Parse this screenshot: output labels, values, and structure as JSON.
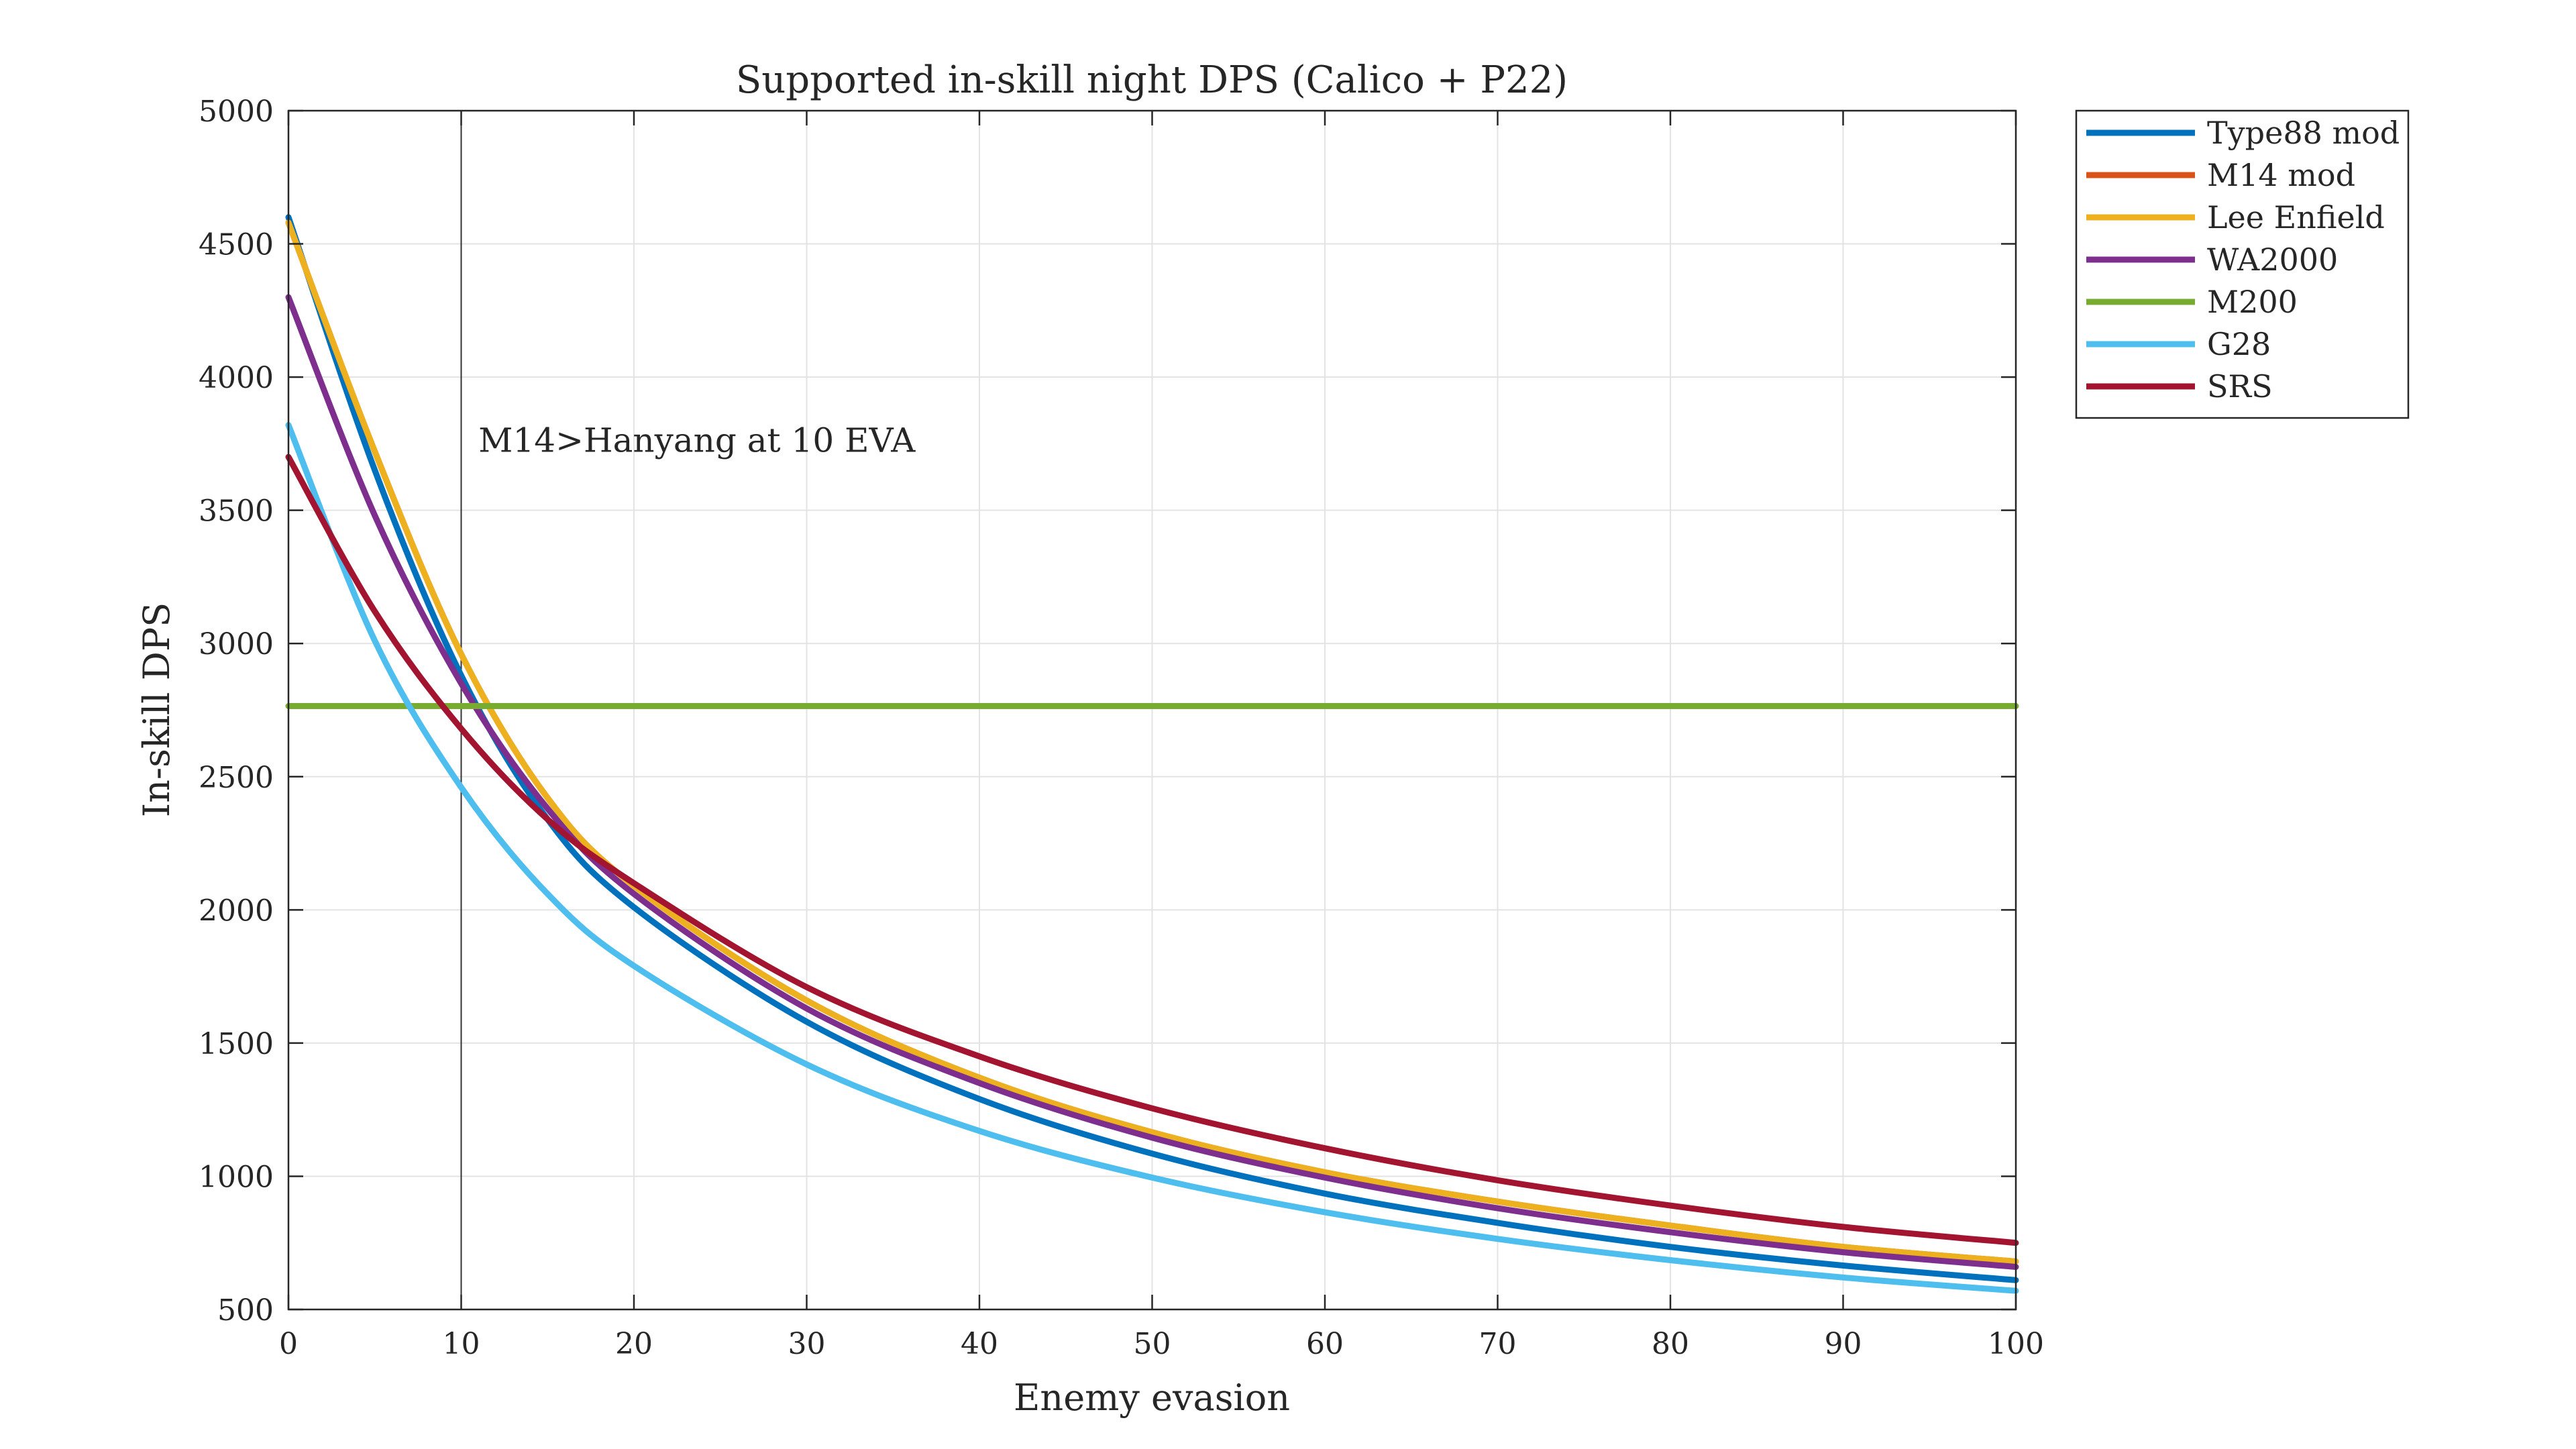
{
  "chart_data": {
    "type": "line",
    "title": "Supported in-skill night DPS (Calico + P22)",
    "xlabel": "Enemy evasion",
    "ylabel": "In-skill DPS",
    "xlim": [
      0,
      100
    ],
    "ylim": [
      500,
      5000
    ],
    "xticks": [
      0,
      10,
      20,
      30,
      40,
      50,
      60,
      70,
      80,
      90,
      100
    ],
    "yticks": [
      500,
      1000,
      1500,
      2000,
      2500,
      3000,
      3500,
      4000,
      4500,
      5000
    ],
    "grid": true,
    "legend_position": "outside top-right",
    "x": [
      0,
      5,
      10,
      15,
      20,
      30,
      40,
      50,
      60,
      70,
      80,
      90,
      100
    ],
    "series": [
      {
        "name": "Type88 mod",
        "color": "#0072BD",
        "values": [
          4600,
          3650,
          2880,
          2340,
          2010,
          1580,
          1290,
          1085,
          935,
          825,
          735,
          665,
          610
        ]
      },
      {
        "name": "M14 mod",
        "color": "#D95319",
        "values": [
          4580,
          3720,
          2960,
          2420,
          2090,
          1660,
          1370,
          1165,
          1015,
          905,
          815,
          735,
          680
        ]
      },
      {
        "name": "Lee Enfield",
        "color": "#EDB120",
        "values": [
          4580,
          3720,
          2960,
          2420,
          2090,
          1660,
          1370,
          1165,
          1015,
          905,
          815,
          735,
          680
        ]
      },
      {
        "name": "WA2000",
        "color": "#7E2F8E",
        "values": [
          4300,
          3480,
          2850,
          2380,
          2060,
          1630,
          1350,
          1145,
          995,
          880,
          790,
          715,
          660
        ]
      },
      {
        "name": "M200",
        "color": "#77AC30",
        "values": [
          2765,
          2765,
          2765,
          2765,
          2765,
          2765,
          2765,
          2765,
          2765,
          2765,
          2765,
          2765,
          2765
        ]
      },
      {
        "name": "G28",
        "color": "#4DBEEE",
        "values": [
          3820,
          3010,
          2460,
          2060,
          1790,
          1420,
          1170,
          995,
          865,
          765,
          685,
          620,
          570
        ]
      },
      {
        "name": "SRS",
        "color": "#A2142F",
        "values": [
          3700,
          3120,
          2680,
          2340,
          2100,
          1710,
          1450,
          1255,
          1105,
          985,
          890,
          810,
          750
        ]
      }
    ],
    "vline": {
      "x": 10,
      "color": "#333333"
    },
    "annotations": [
      {
        "text": "M14>Hanyang at 10 EVA",
        "x": 11,
        "y": 3720
      }
    ]
  }
}
